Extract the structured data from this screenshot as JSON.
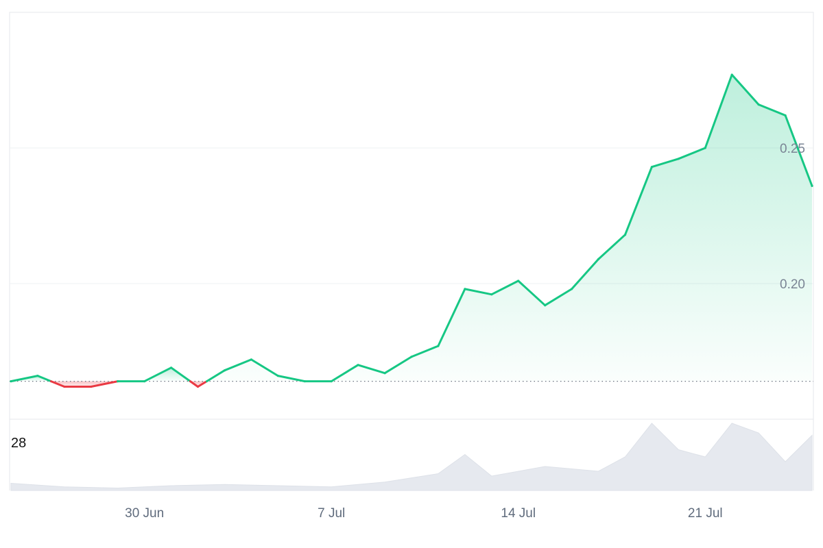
{
  "chart_data": {
    "type": "area",
    "x_axis": {
      "ticks": [
        {
          "label": "30 Jun",
          "date": "2025-06-30"
        },
        {
          "label": "7 Jul",
          "date": "2025-07-07"
        },
        {
          "label": "14 Jul",
          "date": "2025-07-14"
        },
        {
          "label": "21 Jul",
          "date": "2025-07-21"
        }
      ]
    },
    "y_axis": {
      "ticks": [
        {
          "label": "0.25",
          "value": 0.25
        },
        {
          "label": "0.20",
          "value": 0.2
        }
      ],
      "range": [
        0.15,
        0.3
      ]
    },
    "baseline_value": 0.164,
    "colors": {
      "up": "#16c784",
      "down": "#ea3943",
      "up_fill": "#16c784",
      "down_fill": "#ea3943",
      "volume": "#e6e9ef"
    },
    "price_series": {
      "x": [
        "2025-06-25",
        "2025-06-26",
        "2025-06-27",
        "2025-06-28",
        "2025-06-29",
        "2025-06-30",
        "2025-07-01",
        "2025-07-02",
        "2025-07-03",
        "2025-07-04",
        "2025-07-05",
        "2025-07-06",
        "2025-07-07",
        "2025-07-08",
        "2025-07-09",
        "2025-07-10",
        "2025-07-11",
        "2025-07-12",
        "2025-07-13",
        "2025-07-14",
        "2025-07-15",
        "2025-07-16",
        "2025-07-17",
        "2025-07-18",
        "2025-07-19",
        "2025-07-20",
        "2025-07-21",
        "2025-07-22",
        "2025-07-23",
        "2025-07-24",
        "2025-07-25"
      ],
      "y": [
        0.164,
        0.166,
        0.162,
        0.162,
        0.164,
        0.164,
        0.169,
        0.162,
        0.168,
        0.172,
        0.166,
        0.164,
        0.164,
        0.17,
        0.167,
        0.173,
        0.177,
        0.198,
        0.196,
        0.201,
        0.192,
        0.198,
        0.209,
        0.218,
        0.243,
        0.246,
        0.25,
        0.277,
        0.266,
        0.262,
        0.236
      ]
    },
    "volume_series": {
      "label": "28",
      "x": [
        "2025-06-25",
        "2025-06-27",
        "2025-06-29",
        "2025-07-01",
        "2025-07-03",
        "2025-07-05",
        "2025-07-07",
        "2025-07-09",
        "2025-07-11",
        "2025-07-12",
        "2025-07-13",
        "2025-07-15",
        "2025-07-17",
        "2025-07-18",
        "2025-07-19",
        "2025-07-20",
        "2025-07-21",
        "2025-07-22",
        "2025-07-23",
        "2025-07-24",
        "2025-07-25"
      ],
      "values": [
        3,
        1.5,
        1,
        2,
        2.5,
        2,
        1.5,
        3.5,
        7,
        15,
        6,
        10,
        8,
        14,
        28,
        17,
        14,
        28,
        24,
        12,
        23
      ]
    }
  }
}
